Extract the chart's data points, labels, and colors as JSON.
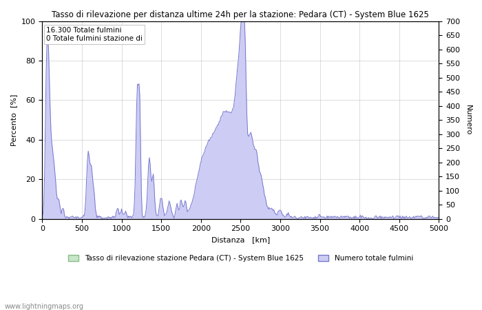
{
  "title": "Tasso di rilevazione per distanza ultime 24h per la stazione: Pedara (CT) - System Blue 1625",
  "xlabel": "Distanza   [km]",
  "ylabel_left": "Percento  [%]",
  "ylabel_right": "Numero",
  "annotation_line1": "16.300 Totale fulmini",
  "annotation_line2": "0 Totale fulmini stazione di",
  "xlim": [
    0,
    5000
  ],
  "ylim_left": [
    0,
    100
  ],
  "ylim_right": [
    0,
    700
  ],
  "yticks_left": [
    0,
    20,
    40,
    60,
    80,
    100
  ],
  "yticks_right": [
    0,
    50,
    100,
    150,
    200,
    250,
    300,
    350,
    400,
    450,
    500,
    550,
    600,
    650,
    700
  ],
  "xticks": [
    0,
    500,
    1000,
    1500,
    2000,
    2500,
    3000,
    3500,
    4000,
    4500,
    5000
  ],
  "legend_label_green": "Tasso di rilevazione stazione Pedara (CT) - System Blue 1625",
  "legend_label_blue": "Numero totale fulmini",
  "watermark": "www.lightningmaps.org",
  "fill_blue_color": "#ccccf5",
  "fill_green_color": "#c8e6c8",
  "line_blue_color": "#7777cc",
  "line_green_color": "#88bb88",
  "background_color": "#ffffff",
  "grid_color": "#bbbbbb"
}
